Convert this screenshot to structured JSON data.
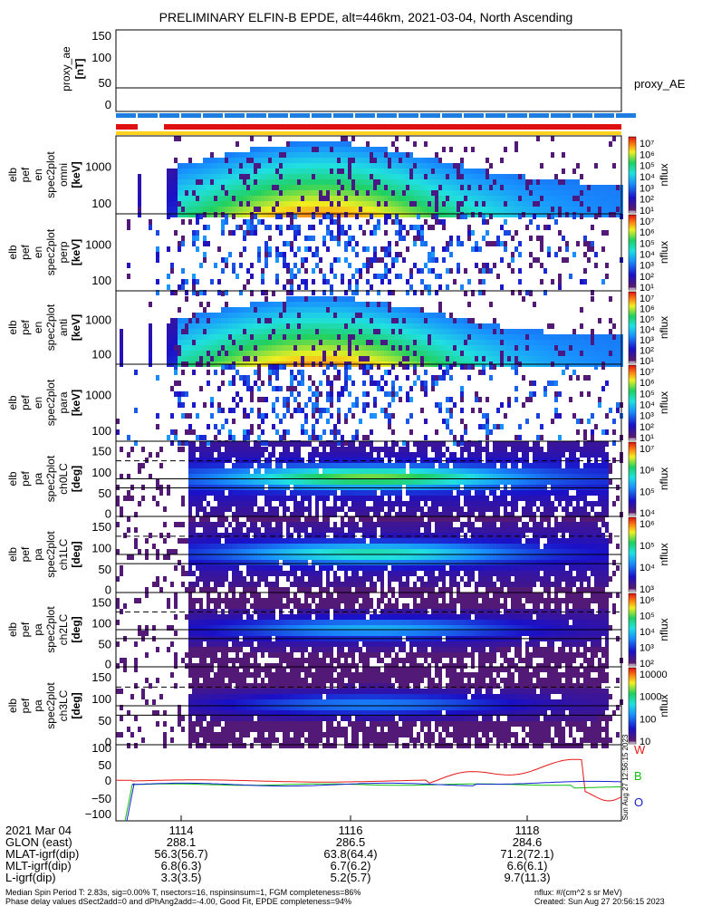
{
  "title": "PRELIMINARY ELFIN-B EPDE, alt=446km, 2021-03-04, North Ascending",
  "colors": {
    "bar_blue": "#1e7ee0",
    "bar_red": "#e01010",
    "bar_yellow": "#ffd21e",
    "trace_red": "#e81818",
    "trace_green": "#10c010",
    "trace_blue": "#1020d0"
  },
  "panels": [
    {
      "ylabel": [
        "proxy_ae",
        "[nT]"
      ],
      "right_label": "proxy_AE",
      "ticks": [
        "150",
        "100",
        "50",
        "0"
      ]
    },
    {
      "ylabel": [
        "elb",
        "pef",
        "en",
        "spec2plot",
        "omni",
        "[keV]"
      ],
      "ticks": [
        "1000",
        "100"
      ],
      "cbar_label": "nflux",
      "cbar_ticks": [
        "10⁷",
        "10⁶",
        "10⁵",
        "10⁴",
        "10³",
        "10²",
        "10¹"
      ]
    },
    {
      "ylabel": [
        "elb",
        "pef",
        "en",
        "spec2plot",
        "perp",
        "[keV]"
      ],
      "ticks": [
        "1000",
        "100"
      ],
      "cbar_label": "nflux",
      "cbar_ticks": [
        "10⁷",
        "10⁶",
        "10⁵",
        "10⁴",
        "10³",
        "10²",
        "10¹"
      ]
    },
    {
      "ylabel": [
        "elb",
        "pef",
        "en",
        "spec2plot",
        "anti",
        "[keV]"
      ],
      "ticks": [
        "1000",
        "100"
      ],
      "cbar_label": "nflux",
      "cbar_ticks": [
        "10⁷",
        "10⁶",
        "10⁵",
        "10⁴",
        "10³",
        "10²",
        "10¹"
      ]
    },
    {
      "ylabel": [
        "elb",
        "pef",
        "en",
        "spec2plot",
        "para",
        "[keV]"
      ],
      "ticks": [
        "1000",
        "100"
      ],
      "cbar_label": "nflux",
      "cbar_ticks": [
        "10⁷",
        "10⁶",
        "10⁵",
        "10⁴",
        "10³",
        "10²",
        "10¹"
      ]
    },
    {
      "ylabel": [
        "elb",
        "pef",
        "pa",
        "spec2plot",
        "ch0LC",
        "[deg]"
      ],
      "ticks": [
        "150",
        "100",
        "50",
        "0"
      ],
      "cbar_label": "nflux",
      "cbar_ticks": [
        "10⁷",
        "10⁶",
        "10⁵",
        "10⁴"
      ]
    },
    {
      "ylabel": [
        "elb",
        "pef",
        "pa",
        "spec2plot",
        "ch1LC",
        "[deg]"
      ],
      "ticks": [
        "150",
        "100",
        "50",
        "0"
      ],
      "cbar_label": "nflux",
      "cbar_ticks": [
        "10⁶",
        "10⁵",
        "10⁴",
        "10³"
      ]
    },
    {
      "ylabel": [
        "elb",
        "pef",
        "pa",
        "spec2plot",
        "ch2LC",
        "[deg]"
      ],
      "ticks": [
        "150",
        "100",
        "50",
        "0"
      ],
      "cbar_label": "nflux",
      "cbar_ticks": [
        "10⁶",
        "10⁵",
        "10⁴",
        "10³",
        "10²"
      ]
    },
    {
      "ylabel": [
        "elb",
        "pef",
        "pa",
        "spec2plot",
        "ch3LC",
        "[deg]"
      ],
      "ticks": [
        "150",
        "100",
        "50",
        "0"
      ],
      "cbar_label": "nflux",
      "cbar_ticks": [
        "10000",
        "1000",
        "100",
        "10"
      ]
    },
    {
      "ylabel": [
        "elb",
        "fgs",
        "fsp",
        "res",
        "obw",
        "[nT]"
      ],
      "ticks": [
        "100",
        "50",
        "0",
        "−50",
        "−100"
      ],
      "legend": [
        "W",
        "B",
        "O"
      ]
    }
  ],
  "x_ticks": [
    "1114",
    "1116",
    "1118"
  ],
  "orbit_rows": [
    {
      "label": "2021 Mar 04",
      "values": [
        "1114",
        "1116",
        "1118"
      ]
    },
    {
      "label": "GLON (east)",
      "values": [
        "288.1",
        "286.5",
        "284.6"
      ]
    },
    {
      "label": "MLAT-igrf(dip)",
      "values": [
        "56.3(56.7)",
        "63.8(64.4)",
        "71.2(72.1)"
      ]
    },
    {
      "label": "MLT-igrf(dip)",
      "values": [
        "6.8(6.3)",
        "6.7(6.2)",
        "6.6(6.1)"
      ]
    },
    {
      "label": "L-igrf(dip)",
      "values": [
        "3.3(3.5)",
        "5.2(5.7)",
        "9.7(11.3)"
      ]
    }
  ],
  "footer": {
    "line1": "Median Spin Period T: 2.83s, sig=0.00% T, nsectors=16, nspinsinsum=1, FGM completeness=86%",
    "line2": "Phase delay values dSect2add=0 and dPhAng2add=-4.00, Good Fit, EPDE completeness=94%",
    "units": "nflux: #/(cm^2 s sr MeV)",
    "created": "Created: Sun Aug 27 20:56:15 2023"
  },
  "side_stamp": "Sun Aug 27 12:56:15 2023",
  "chart_data": {
    "type": "heatmap",
    "title": "PRELIMINARY ELFIN-B EPDE, alt=446km, 2021-03-04, North Ascending",
    "x_tick_labels": [
      "1114",
      "1116",
      "1118"
    ],
    "proxy_ae": {
      "ylim": [
        0,
        150
      ],
      "value": 37
    },
    "energy_panels": {
      "ylim_keV": [
        60,
        7000
      ],
      "scale": "log",
      "count": 4
    },
    "pitch_angle_panels": {
      "ylim_deg": [
        0,
        180
      ],
      "count": 4
    },
    "fgs_residuals": {
      "ylim": [
        -100,
        100
      ],
      "series": [
        {
          "name": "W",
          "note": "rises to ~75 near 1117.8"
        },
        {
          "name": "B",
          "note": "near 0"
        },
        {
          "name": "O",
          "note": "near 0"
        }
      ]
    },
    "colorbar_ranges": [
      {
        "panel": "energy",
        "min": "10¹",
        "max": "10⁷"
      },
      {
        "panel": "ch0LC",
        "min": "10⁴",
        "max": "10⁷"
      },
      {
        "panel": "ch1LC",
        "min": "10³",
        "max": "10⁶"
      },
      {
        "panel": "ch2LC",
        "min": "10²",
        "max": "10⁶"
      },
      {
        "panel": "ch3LC",
        "min": "10",
        "max": "10000"
      }
    ]
  }
}
